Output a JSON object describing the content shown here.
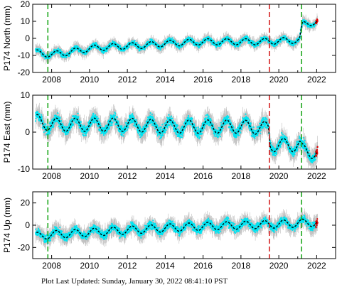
{
  "footer": "Plot Last Updated:   Sunday, January 30, 2022 08:41:10 PST",
  "colors": {
    "observed": "#00e5f2",
    "error_bars": "#b4b4b4",
    "model": "#000000",
    "recent": "#e00000",
    "event_green": "#1fa81f",
    "event_red": "#d42020"
  },
  "chart_data": [
    {
      "type": "scatter",
      "ylabel": "P174 North (mm)",
      "xlim": [
        2007.0,
        2023.0
      ],
      "ylim": [
        -20,
        20
      ],
      "xticks": [
        2008,
        2010,
        2012,
        2014,
        2016,
        2018,
        2020,
        2022
      ],
      "yticks": [
        -20,
        -10,
        0,
        10,
        20
      ],
      "vlines": [
        {
          "x": 2007.8,
          "color": "green",
          "style": "dashed"
        },
        {
          "x": 2019.5,
          "color": "red",
          "style": "dashed"
        },
        {
          "x": 2021.2,
          "color": "green",
          "style": "dashed"
        }
      ],
      "series": [
        {
          "kind": "model",
          "x": [
            2007.2,
            2008.0,
            2009.0,
            2010.0,
            2011.0,
            2012.0,
            2013.0,
            2014.0,
            2015.0,
            2016.0,
            2017.0,
            2018.0,
            2019.0,
            2020.0,
            2021.1,
            2021.25,
            2022.0
          ],
          "y": [
            -8.5,
            -9.5,
            -8.0,
            -6.0,
            -5.0,
            -4.5,
            -4.0,
            -3.0,
            -2.5,
            -2.0,
            -2.0,
            -2.0,
            -2.0,
            -1.5,
            -1.0,
            8.0,
            10.0
          ]
        }
      ]
    },
    {
      "type": "scatter",
      "ylabel": "P174 East (mm)",
      "xlim": [
        2007.0,
        2023.0
      ],
      "ylim": [
        -10,
        10
      ],
      "xticks": [
        2008,
        2010,
        2012,
        2014,
        2016,
        2018,
        2020,
        2022
      ],
      "yticks": [
        -10,
        0,
        10
      ],
      "vlines": [
        {
          "x": 2007.8,
          "color": "green",
          "style": "dashed"
        },
        {
          "x": 2019.5,
          "color": "red",
          "style": "dashed"
        },
        {
          "x": 2021.2,
          "color": "green",
          "style": "dashed"
        }
      ],
      "series": [
        {
          "kind": "model",
          "x": [
            2007.2,
            2008.0,
            2010.0,
            2012.0,
            2014.0,
            2016.0,
            2018.0,
            2019.45,
            2019.55,
            2021.1,
            2021.25,
            2022.0
          ],
          "y": [
            3.0,
            2.0,
            2.0,
            2.0,
            1.5,
            1.5,
            1.5,
            1.0,
            -3.5,
            -3.5,
            -5.0,
            -5.5
          ]
        }
      ]
    },
    {
      "type": "scatter",
      "ylabel": "P174 Up (mm)",
      "xlim": [
        2007.0,
        2023.0
      ],
      "ylim": [
        -30,
        30
      ],
      "xticks": [
        2008,
        2010,
        2012,
        2014,
        2016,
        2018,
        2020,
        2022
      ],
      "yticks": [
        -20,
        0,
        20
      ],
      "vlines": [
        {
          "x": 2007.8,
          "color": "green",
          "style": "dashed"
        },
        {
          "x": 2019.5,
          "color": "red",
          "style": "dashed"
        },
        {
          "x": 2021.2,
          "color": "green",
          "style": "dashed"
        }
      ],
      "series": [
        {
          "kind": "model",
          "x": [
            2007.2,
            2008.0,
            2010.0,
            2012.0,
            2014.0,
            2016.0,
            2018.0,
            2020.0,
            2022.0
          ],
          "y": [
            -10.0,
            -8.5,
            -6.5,
            -4.5,
            -2.5,
            -1.0,
            0.0,
            1.0,
            2.5
          ]
        }
      ]
    }
  ]
}
